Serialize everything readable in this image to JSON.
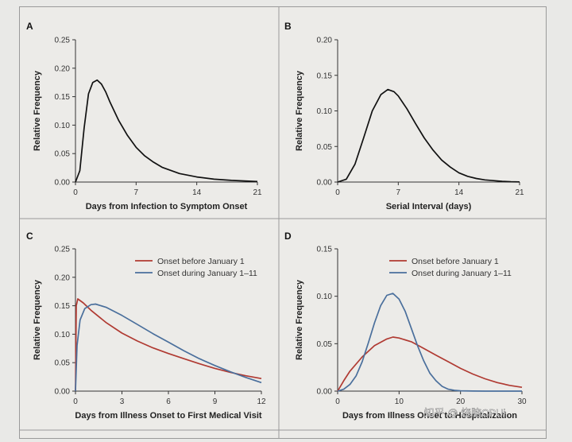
{
  "chart_data": [
    {
      "panel": "A",
      "type": "line",
      "xlabel": "Days from Infection to Symptom Onset",
      "ylabel": "Relative Frequency",
      "xlim": [
        0,
        21
      ],
      "ylim": [
        0,
        0.25
      ],
      "xticks": [
        "0",
        "7",
        "14",
        "21"
      ],
      "yticks": [
        "0.00",
        "0.05",
        "0.10",
        "0.15",
        "0.20",
        "0.25"
      ],
      "series": [
        {
          "name": "",
          "color": "#111111",
          "x": [
            0,
            0.5,
            1,
            1.5,
            2,
            2.5,
            3,
            3.5,
            4,
            5,
            6,
            7,
            8,
            9,
            10,
            12,
            14,
            16,
            18,
            21
          ],
          "y": [
            0,
            0.02,
            0.095,
            0.155,
            0.175,
            0.179,
            0.172,
            0.158,
            0.14,
            0.108,
            0.082,
            0.061,
            0.046,
            0.035,
            0.026,
            0.015,
            0.009,
            0.005,
            0.003,
            0.001
          ]
        }
      ]
    },
    {
      "panel": "B",
      "type": "line",
      "xlabel": "Serial Interval (days)",
      "ylabel": "Relative Frequency",
      "xlim": [
        0,
        21
      ],
      "ylim": [
        0,
        0.2
      ],
      "xticks": [
        "0",
        "7",
        "14",
        "21"
      ],
      "yticks": [
        "0.00",
        "0.05",
        "0.10",
        "0.15",
        "0.20"
      ],
      "series": [
        {
          "name": "",
          "color": "#111111",
          "x": [
            0,
            1,
            2,
            3,
            4,
            5,
            5.8,
            6.5,
            7,
            8,
            9,
            10,
            11,
            12,
            13,
            14,
            15,
            16,
            17,
            18,
            19,
            20,
            21
          ],
          "y": [
            0,
            0.004,
            0.025,
            0.062,
            0.1,
            0.123,
            0.13,
            0.127,
            0.121,
            0.103,
            0.082,
            0.062,
            0.045,
            0.031,
            0.021,
            0.013,
            0.008,
            0.005,
            0.003,
            0.002,
            0.001,
            0.0005,
            0.0002
          ]
        }
      ]
    },
    {
      "panel": "C",
      "type": "line",
      "xlabel": "Days from Illness Onset to First Medical Visit",
      "ylabel": "Relative Frequency",
      "xlim": [
        0,
        12
      ],
      "ylim": [
        0,
        0.25
      ],
      "xticks": [
        "0",
        "3",
        "6",
        "9",
        "12"
      ],
      "yticks": [
        "0.00",
        "0.05",
        "0.10",
        "0.15",
        "0.20",
        "0.25"
      ],
      "legend_position": "top-right",
      "series": [
        {
          "name": "Onset before January 1",
          "color": "#b03a32",
          "x": [
            0,
            0.05,
            0.15,
            0.5,
            1,
            2,
            3,
            4,
            5,
            6,
            7,
            8,
            9,
            10,
            11,
            12
          ],
          "y": [
            0,
            0.15,
            0.162,
            0.155,
            0.142,
            0.12,
            0.102,
            0.088,
            0.076,
            0.066,
            0.057,
            0.048,
            0.04,
            0.033,
            0.027,
            0.022
          ]
        },
        {
          "name": "Onset during January 1–11",
          "color": "#4a6f9c",
          "x": [
            0,
            0.1,
            0.3,
            0.6,
            1,
            1.3,
            2,
            3,
            4,
            5,
            6,
            7,
            8,
            9,
            10,
            11,
            12
          ],
          "y": [
            0,
            0.08,
            0.125,
            0.145,
            0.152,
            0.153,
            0.147,
            0.133,
            0.117,
            0.101,
            0.086,
            0.071,
            0.057,
            0.045,
            0.034,
            0.024,
            0.015
          ]
        }
      ]
    },
    {
      "panel": "D",
      "type": "line",
      "xlabel": "Days from Illness Onset to Hospitalization",
      "ylabel": "Relative Frequency",
      "xlim": [
        0,
        30
      ],
      "ylim": [
        0,
        0.15
      ],
      "xticks": [
        "0",
        "10",
        "20",
        "30"
      ],
      "yticks": [
        "0.00",
        "0.05",
        "0.10",
        "0.15"
      ],
      "legend_position": "top-right",
      "series": [
        {
          "name": "Onset before January 1",
          "color": "#b03a32",
          "x": [
            0,
            1,
            2,
            4,
            6,
            8,
            9,
            10,
            12,
            14,
            16,
            18,
            20,
            22,
            24,
            26,
            28,
            30
          ],
          "y": [
            0,
            0.011,
            0.021,
            0.036,
            0.048,
            0.055,
            0.057,
            0.056,
            0.052,
            0.045,
            0.038,
            0.031,
            0.024,
            0.018,
            0.013,
            0.009,
            0.006,
            0.004
          ]
        },
        {
          "name": "Onset during January 1–11",
          "color": "#4a6f9c",
          "x": [
            0,
            1,
            2,
            3,
            4,
            5,
            6,
            7,
            8,
            9,
            10,
            11,
            12,
            13,
            14,
            15,
            16,
            17,
            18,
            19,
            20,
            22,
            24,
            30
          ],
          "y": [
            0,
            0.002,
            0.007,
            0.016,
            0.031,
            0.051,
            0.072,
            0.09,
            0.101,
            0.103,
            0.097,
            0.084,
            0.066,
            0.048,
            0.032,
            0.019,
            0.011,
            0.005,
            0.002,
            0.0008,
            0.0003,
            0.0001,
            0,
            0
          ]
        }
      ]
    }
  ],
  "watermark": "知乎 @ 烧脑CPUi"
}
